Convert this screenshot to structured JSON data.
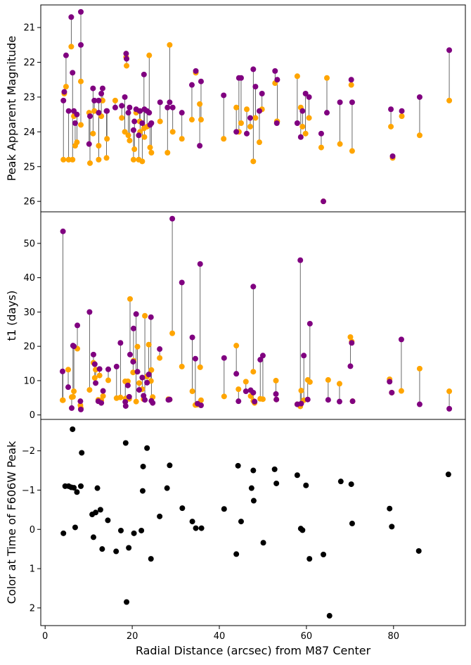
{
  "colors": {
    "orange": "#ffa500",
    "purple": "#800080",
    "black": "#000000",
    "connector": "#444444"
  },
  "chart_data": [
    {
      "type": "scatter",
      "ylabel": "Peak Apparent Magnitude",
      "xlabel": "",
      "xlim": [
        -1,
        96.5
      ],
      "ylim": [
        26.3,
        20.35
      ],
      "y_inverted": true,
      "yticks": [
        21,
        22,
        23,
        24,
        25,
        26
      ],
      "grid": false,
      "pairs": [
        [
          4.2,
          24.8,
          23.1
        ],
        [
          4.4,
          22.9,
          22.85
        ],
        [
          4.8,
          22.7,
          21.8
        ],
        [
          5.4,
          24.8,
          23.4
        ],
        [
          6.0,
          21.55,
          20.7
        ],
        [
          6.3,
          24.8,
          22.3
        ],
        [
          6.6,
          23.55,
          23.4
        ],
        [
          6.9,
          24.4,
          23.75
        ],
        [
          7.3,
          24.3,
          23.5
        ],
        [
          8.2,
          22.55,
          21.5
        ],
        [
          8.2,
          23.8,
          20.55
        ],
        [
          10.1,
          23.45,
          24.35
        ],
        [
          10.3,
          24.9,
          23.55
        ],
        [
          11.0,
          24.05,
          22.75
        ],
        [
          11.3,
          23.4,
          23.1
        ],
        [
          12.3,
          24.8,
          23.1
        ],
        [
          12.3,
          24.4,
          23.45
        ],
        [
          12.9,
          23.55,
          22.9
        ],
        [
          13.2,
          23.1,
          22.75
        ],
        [
          14.1,
          24.75,
          23.4
        ],
        [
          14.2,
          24.2,
          23.4
        ],
        [
          16.1,
          23.1,
          23.3
        ],
        [
          17.6,
          23.6,
          23.25
        ],
        [
          18.3,
          24.0,
          23.0
        ],
        [
          18.6,
          21.85,
          21.75
        ],
        [
          18.7,
          22.1,
          21.9
        ],
        [
          19.1,
          24.1,
          23.45
        ],
        [
          19.4,
          24.25,
          23.3
        ],
        [
          20.3,
          24.8,
          23.95
        ],
        [
          20.5,
          24.5,
          23.7
        ],
        [
          20.9,
          23.45,
          23.35
        ],
        [
          21.5,
          24.8,
          24.1
        ],
        [
          21.7,
          23.7,
          23.4
        ],
        [
          21.8,
          24.0,
          23.4
        ],
        [
          22.3,
          24.85,
          23.75
        ],
        [
          22.7,
          23.9,
          22.35
        ],
        [
          22.8,
          24.15,
          23.35
        ],
        [
          23.4,
          23.85,
          23.4
        ],
        [
          23.9,
          21.8,
          23.45
        ],
        [
          24.1,
          24.45,
          23.8
        ],
        [
          24.4,
          24.6,
          23.75
        ],
        [
          26.4,
          23.7,
          23.15
        ],
        [
          28.1,
          24.6,
          23.3
        ],
        [
          28.6,
          21.5,
          23.15
        ],
        [
          29.3,
          24.0,
          23.3
        ],
        [
          31.4,
          24.2,
          23.45
        ],
        [
          33.7,
          23.65,
          22.65
        ],
        [
          34.6,
          22.3,
          22.25
        ],
        [
          35.5,
          23.2,
          24.4
        ],
        [
          35.8,
          23.65,
          22.55
        ],
        [
          41.0,
          24.2,
          22.95
        ],
        [
          43.9,
          23.3,
          24.0
        ],
        [
          44.5,
          24.0,
          22.45
        ],
        [
          45.0,
          23.75,
          22.45
        ],
        [
          46.3,
          23.35,
          24.05
        ],
        [
          47.1,
          23.85,
          23.6
        ],
        [
          47.8,
          24.85,
          22.2
        ],
        [
          48.3,
          23.6,
          22.7
        ],
        [
          49.2,
          24.3,
          23.4
        ],
        [
          49.8,
          23.35,
          22.9
        ],
        [
          52.8,
          22.6,
          22.25
        ],
        [
          53.2,
          23.7,
          23.75
        ],
        [
          53.3,
          23.7,
          22.5
        ],
        [
          57.9,
          22.4,
          23.75
        ],
        [
          58.7,
          23.3,
          24.15
        ],
        [
          59.1,
          23.85,
          23.4
        ],
        [
          59.8,
          24.05,
          22.9
        ],
        [
          60.6,
          23.6,
          23.0
        ],
        [
          63.4,
          24.45,
          24.05
        ],
        [
          63.9,
          26.0,
          26.0
        ],
        [
          64.7,
          22.45,
          23.45
        ],
        [
          67.7,
          24.35,
          23.15
        ],
        [
          70.3,
          22.65,
          22.5
        ],
        [
          70.5,
          24.55,
          23.15
        ],
        [
          79.4,
          23.85,
          23.35
        ],
        [
          79.8,
          24.75,
          24.7
        ],
        [
          81.9,
          23.55,
          23.4
        ],
        [
          86.0,
          24.1,
          23.0
        ],
        [
          92.8,
          23.1,
          21.65
        ]
      ]
    },
    {
      "type": "scatter",
      "ylabel": "t1 (days)",
      "xlabel": "",
      "xlim": [
        -1,
        96.5
      ],
      "ylim": [
        -1.3,
        59.2
      ],
      "yticks": [
        0,
        10,
        20,
        30,
        40,
        50
      ],
      "grid": false,
      "pairs": [
        [
          4.0,
          4.3,
          12.7
        ],
        [
          4.1,
          4.3,
          53.5
        ],
        [
          5.3,
          13.2,
          8.1
        ],
        [
          6.1,
          5.2,
          2.0
        ],
        [
          6.4,
          5.3,
          20.2
        ],
        [
          6.6,
          6.9,
          20.0
        ],
        [
          7.4,
          19.3,
          26.1
        ],
        [
          8.1,
          2.8,
          4.0
        ],
        [
          8.2,
          2.0,
          1.6
        ],
        [
          10.2,
          7.3,
          30.0
        ],
        [
          11.1,
          15.2,
          17.6
        ],
        [
          11.4,
          10.8,
          14.8
        ],
        [
          11.6,
          13.2,
          9.3
        ],
        [
          12.2,
          4.4,
          4.0
        ],
        [
          12.5,
          11.5,
          13.4
        ],
        [
          12.9,
          4.3,
          3.5
        ],
        [
          13.3,
          5.5,
          7.0
        ],
        [
          14.5,
          10.1,
          13.3
        ],
        [
          16.4,
          4.9,
          14.1
        ],
        [
          17.3,
          5.1,
          21.0
        ],
        [
          18.4,
          9.8,
          3.8
        ],
        [
          18.5,
          4.8,
          2.6
        ],
        [
          19.0,
          9.8,
          8.6
        ],
        [
          19.3,
          4.7,
          5.3
        ],
        [
          19.5,
          33.8,
          17.6
        ],
        [
          20.2,
          12.4,
          15.5
        ],
        [
          20.3,
          15.8,
          25.2
        ],
        [
          20.9,
          3.9,
          29.4
        ],
        [
          21.2,
          19.9,
          12.6
        ],
        [
          21.6,
          9.3,
          7.3
        ],
        [
          22.3,
          7.5,
          10.9
        ],
        [
          22.6,
          4.6,
          5.6
        ],
        [
          22.9,
          28.9,
          4.4
        ],
        [
          23.4,
          11.2,
          9.4
        ],
        [
          23.8,
          20.5,
          11.8
        ],
        [
          24.3,
          9.9,
          28.5
        ],
        [
          24.4,
          13.1,
          4.1
        ],
        [
          24.7,
          5.2,
          3.5
        ],
        [
          26.3,
          16.6,
          19.2
        ],
        [
          28.3,
          4.6,
          4.4
        ],
        [
          28.6,
          4.5,
          4.5
        ],
        [
          29.2,
          23.8,
          57.2
        ],
        [
          31.4,
          14.1,
          38.6
        ],
        [
          33.8,
          6.9,
          22.6
        ],
        [
          34.5,
          2.9,
          16.4
        ],
        [
          35.0,
          3.0,
          3.3
        ],
        [
          35.6,
          13.9,
          44.0
        ],
        [
          35.8,
          4.3,
          2.8
        ],
        [
          41.1,
          5.4,
          16.6
        ],
        [
          43.9,
          20.2,
          12.0
        ],
        [
          44.4,
          7.5,
          4.0
        ],
        [
          46.1,
          9.7,
          6.9
        ],
        [
          47.2,
          5.5,
          7.2
        ],
        [
          47.8,
          4.1,
          6.5
        ],
        [
          47.8,
          12.6,
          37.4
        ],
        [
          48.1,
          3.5,
          3.9
        ],
        [
          49.4,
          4.7,
          16.1
        ],
        [
          50.0,
          4.6,
          17.3
        ],
        [
          53.0,
          10.0,
          6.1
        ],
        [
          53.1,
          4.5,
          4.5
        ],
        [
          57.9,
          3.1,
          3.1
        ],
        [
          58.6,
          2.5,
          45.1
        ],
        [
          58.8,
          7.1,
          3.3
        ],
        [
          59.4,
          4.3,
          17.3
        ],
        [
          60.3,
          10.2,
          4.5
        ],
        [
          60.8,
          9.6,
          26.6
        ],
        [
          65.0,
          10.2,
          4.4
        ],
        [
          67.6,
          9.1,
          3.9
        ],
        [
          70.1,
          22.7,
          14.2
        ],
        [
          70.4,
          21.4,
          21.0
        ],
        [
          70.6,
          4.0,
          4.0
        ],
        [
          79.1,
          10.4,
          9.7
        ],
        [
          79.6,
          6.5,
          6.5
        ],
        [
          81.8,
          7.0,
          22.0
        ],
        [
          86.0,
          13.5,
          3.1
        ],
        [
          92.8,
          6.9,
          1.8
        ]
      ]
    },
    {
      "type": "scatter",
      "ylabel": "Color at Time of F606W Peak",
      "xlabel": "Radial Distance (arcsec) from M87 Center",
      "xlim": [
        -1,
        96.5
      ],
      "ylim": [
        2.45,
        -2.8
      ],
      "y_inverted": true,
      "yticks": [
        -2,
        -1,
        0,
        1,
        2
      ],
      "grid": false,
      "points": [
        [
          4.2,
          0.1
        ],
        [
          4.6,
          -1.1
        ],
        [
          5.4,
          -1.1
        ],
        [
          6.0,
          -1.07
        ],
        [
          6.3,
          -2.55
        ],
        [
          6.6,
          -1.06
        ],
        [
          6.9,
          -0.05
        ],
        [
          7.3,
          -0.95
        ],
        [
          8.2,
          -1.1
        ],
        [
          8.4,
          -1.95
        ],
        [
          10.8,
          -0.38
        ],
        [
          11.1,
          0.2
        ],
        [
          11.6,
          -0.43
        ],
        [
          12.0,
          -1.05
        ],
        [
          12.7,
          -0.5
        ],
        [
          13.1,
          0.5
        ],
        [
          14.4,
          -0.23
        ],
        [
          16.3,
          0.56
        ],
        [
          17.4,
          0.03
        ],
        [
          18.5,
          -2.2
        ],
        [
          18.7,
          1.85
        ],
        [
          19.2,
          0.47
        ],
        [
          20.4,
          0.1
        ],
        [
          22.1,
          0.03
        ],
        [
          22.4,
          -0.98
        ],
        [
          22.5,
          -1.6
        ],
        [
          23.4,
          -2.07
        ],
        [
          24.3,
          0.75
        ],
        [
          26.3,
          -0.33
        ],
        [
          28.0,
          -1.05
        ],
        [
          28.6,
          -1.63
        ],
        [
          31.5,
          -0.54
        ],
        [
          33.8,
          -0.2
        ],
        [
          34.6,
          -0.03
        ],
        [
          35.9,
          -0.03
        ],
        [
          41.1,
          -0.52
        ],
        [
          43.9,
          0.63
        ],
        [
          44.3,
          -1.62
        ],
        [
          45.0,
          -0.2
        ],
        [
          47.4,
          -1.05
        ],
        [
          47.8,
          -1.5
        ],
        [
          47.9,
          -0.73
        ],
        [
          50.1,
          0.34
        ],
        [
          52.7,
          -1.53
        ],
        [
          53.1,
          -1.17
        ],
        [
          57.9,
          -1.38
        ],
        [
          58.7,
          -0.02
        ],
        [
          59.1,
          0.02
        ],
        [
          59.9,
          -1.12
        ],
        [
          60.7,
          0.75
        ],
        [
          63.9,
          0.64
        ],
        [
          65.3,
          2.2
        ],
        [
          67.9,
          -1.22
        ],
        [
          70.3,
          -1.15
        ],
        [
          70.5,
          -0.15
        ],
        [
          79.1,
          -0.53
        ],
        [
          79.6,
          -0.07
        ],
        [
          85.8,
          0.55
        ],
        [
          92.6,
          -1.4
        ]
      ]
    }
  ]
}
